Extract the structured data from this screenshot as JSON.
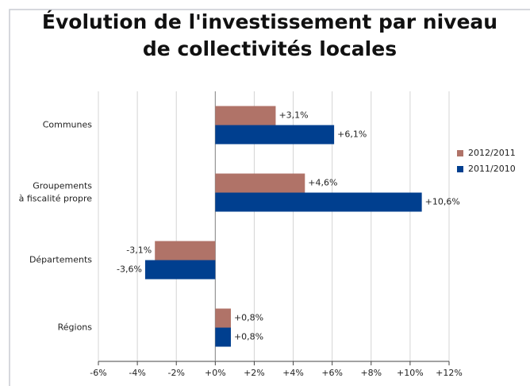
{
  "chart_data": {
    "type": "bar",
    "orientation": "horizontal",
    "title": "Évolution de l'investissement par niveau\nde collectivités locales",
    "categories": [
      "Communes",
      "Groupements\nà fiscalité propre",
      "Départements",
      "Régions"
    ],
    "series": [
      {
        "name": "2012/2011",
        "color": "#b07368",
        "values": [
          3.1,
          4.6,
          -3.1,
          0.8
        ],
        "value_labels": [
          "+3,1%",
          "+4,6%",
          "-3,1%",
          "+0,8%"
        ]
      },
      {
        "name": "2011/2010",
        "color": "#003f8f",
        "values": [
          6.1,
          10.6,
          -3.6,
          0.8
        ],
        "value_labels": [
          "+6,1%",
          "+10,6%",
          "-3,6%",
          "+0,8%"
        ]
      }
    ],
    "xlim": [
      -6,
      12
    ],
    "xticks": [
      {
        "value": -6,
        "label": "-6%"
      },
      {
        "value": -4,
        "label": "-4%"
      },
      {
        "value": -2,
        "label": "-2%"
      },
      {
        "value": 0,
        "label": "+0%"
      },
      {
        "value": 2,
        "label": "+2%"
      },
      {
        "value": 4,
        "label": "+4%"
      },
      {
        "value": 6,
        "label": "+6%"
      },
      {
        "value": 8,
        "label": "+8%"
      },
      {
        "value": 10,
        "label": "+10%"
      },
      {
        "value": 12,
        "label": "+12%"
      }
    ],
    "grid": true,
    "legend": "right"
  }
}
